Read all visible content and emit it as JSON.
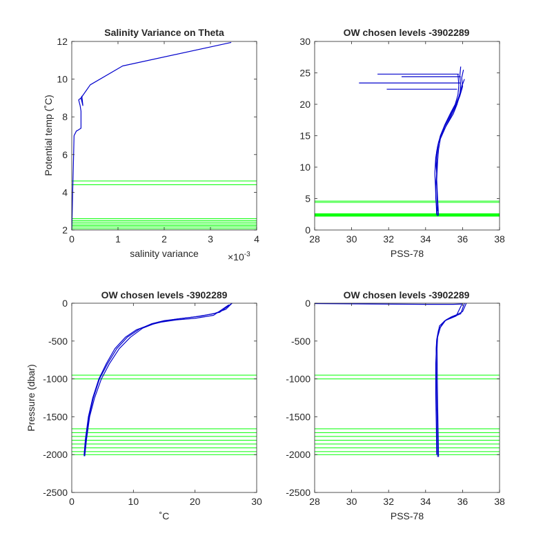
{
  "chart_data": [
    {
      "id": "p1",
      "type": "line",
      "title": "Salinity Variance on Theta",
      "xlabel": "salinity variance",
      "ylabel": "Potential temp (˚C)",
      "x_exponent_label": "×10",
      "x_exponent_power": "-3",
      "xlim": [
        0,
        0.004
      ],
      "ylim": [
        2,
        12
      ],
      "xticks": [
        0,
        0.001,
        0.002,
        0.003,
        0.004
      ],
      "xticklabels": [
        "0",
        "1",
        "2",
        "3",
        "4"
      ],
      "yticks": [
        2,
        4,
        6,
        8,
        10,
        12
      ],
      "yticklabels": [
        "2",
        "4",
        "6",
        "8",
        "10",
        "12"
      ],
      "hlines": [
        2.07,
        2.16,
        2.24,
        2.32,
        2.41,
        2.5,
        2.6,
        4.4,
        4.6
      ],
      "hline_color": "#00ff00",
      "series": [
        {
          "color": "#0000cc",
          "x": [
            0,
            1e-05,
            2e-05,
            3e-05,
            4e-05,
            5e-05,
            0.0001,
            0.00014,
            0.0002,
            0.0002,
            0.00018,
            0.00015,
            0.0002,
            0.00022,
            0.00024,
            0.0002,
            0.0004,
            0.0011,
            0.00345
          ],
          "y": [
            2.0,
            3.0,
            4.0,
            5.0,
            6.0,
            7.0,
            7.25,
            7.3,
            7.4,
            8.3,
            8.6,
            8.9,
            9.0,
            9.1,
            8.6,
            9.0,
            9.7,
            10.7,
            11.95
          ]
        }
      ]
    },
    {
      "id": "p2",
      "type": "line",
      "title": "OW chosen levels -3902289",
      "xlabel": "PSS-78",
      "ylabel": "",
      "xlim": [
        28,
        38
      ],
      "ylim": [
        0,
        30
      ],
      "xticks": [
        28,
        30,
        32,
        34,
        36,
        38
      ],
      "xticklabels": [
        "28",
        "30",
        "32",
        "34",
        "36",
        "38"
      ],
      "yticks": [
        0,
        5,
        10,
        15,
        20,
        25,
        30
      ],
      "yticklabels": [
        "0",
        "5",
        "10",
        "15",
        "20",
        "25",
        "30"
      ],
      "hlines": [
        2.2,
        2.3,
        2.4,
        2.5,
        2.6,
        4.4,
        4.6
      ],
      "hline_color": "#00ff00",
      "series": [
        {
          "color": "#0000cc",
          "x": [
            34.65,
            34.6,
            34.55,
            34.55,
            34.6,
            34.55,
            34.6,
            34.7,
            34.9,
            35.2,
            35.5,
            35.7,
            35.85,
            35.9,
            35.85,
            35.9
          ],
          "y": [
            2.2,
            3.5,
            5.0,
            7.0,
            9.0,
            11.0,
            12.5,
            14.0,
            15.5,
            17.0,
            18.5,
            20.0,
            21.5,
            23.0,
            24.5,
            26.0
          ]
        },
        {
          "color": "#0000cc",
          "x": [
            34.7,
            34.65,
            34.6,
            34.65,
            34.7,
            34.8,
            35.1,
            35.4,
            35.65,
            35.85,
            36.0,
            35.95,
            36.05
          ],
          "y": [
            2.3,
            5.0,
            8.0,
            11.0,
            12.8,
            14.5,
            16.5,
            18.3,
            19.8,
            21.3,
            22.8,
            24.2,
            25.5
          ]
        },
        {
          "color": "#0000cc",
          "x": [
            34.6,
            34.55,
            34.5,
            34.55,
            34.65,
            34.8,
            35.05,
            35.35,
            35.6,
            35.75,
            35.8,
            35.75
          ],
          "y": [
            2.4,
            6.0,
            9.0,
            11.5,
            13.3,
            15.0,
            16.8,
            18.6,
            20.0,
            21.5,
            23.0,
            24.8
          ]
        },
        {
          "color": "#0000cc",
          "x": [
            34.65,
            34.6,
            34.6,
            34.7,
            34.95,
            35.3,
            35.6,
            35.8,
            35.95,
            36.1
          ],
          "y": [
            3.0,
            7.5,
            11.5,
            13.8,
            16.0,
            18.0,
            19.8,
            21.2,
            22.8,
            24.0
          ]
        },
        {
          "color": "#0000cc",
          "x": [
            31.4,
            35.8
          ],
          "y": [
            24.8,
            24.8
          ]
        },
        {
          "color": "#0000cc",
          "x": [
            32.7,
            35.9
          ],
          "y": [
            24.4,
            24.4
          ]
        },
        {
          "color": "#0000cc",
          "x": [
            30.4,
            35.9
          ],
          "y": [
            23.4,
            23.4
          ]
        },
        {
          "color": "#0000cc",
          "x": [
            31.9,
            35.7
          ],
          "y": [
            22.4,
            22.4
          ]
        }
      ]
    },
    {
      "id": "p3",
      "type": "line",
      "title": "OW chosen levels -3902289",
      "xlabel": "˚C",
      "ylabel": "Pressure (dbar)",
      "xlim": [
        0,
        30
      ],
      "ylim": [
        -2500,
        0
      ],
      "xticks": [
        0,
        10,
        20,
        30
      ],
      "xticklabels": [
        "0",
        "10",
        "20",
        "30"
      ],
      "yticks": [
        -2500,
        -2000,
        -1500,
        -1000,
        -500,
        0
      ],
      "yticklabels": [
        "-2500",
        "-2000",
        "-1500",
        "-1000",
        "-500",
        "0"
      ],
      "hlines": [
        -950,
        -1000,
        -1660,
        -1710,
        -1760,
        -1810,
        -1860,
        -1910,
        -1960,
        -2000
      ],
      "hline_color": "#00ff00",
      "series": [
        {
          "color": "#0000cc",
          "x": [
            2.0,
            2.3,
            2.8,
            3.5,
            4.5,
            5.8,
            7.3,
            9.0,
            11.0,
            13.0,
            15.0,
            18.0,
            21.0,
            24.0,
            26.0
          ],
          "y": [
            -2020,
            -1800,
            -1500,
            -1250,
            -1000,
            -800,
            -600,
            -450,
            -340,
            -270,
            -230,
            -200,
            -170,
            -120,
            0
          ]
        },
        {
          "color": "#0000cc",
          "x": [
            2.1,
            2.4,
            2.9,
            3.7,
            4.8,
            6.1,
            7.7,
            9.5,
            11.5,
            14.0,
            17.0,
            20.0,
            23.0,
            25.0,
            26.0
          ],
          "y": [
            -2020,
            -1800,
            -1500,
            -1250,
            -1000,
            -800,
            -600,
            -450,
            -330,
            -250,
            -210,
            -180,
            -140,
            -80,
            0
          ]
        },
        {
          "color": "#0000cc",
          "x": [
            2.0,
            2.2,
            2.7,
            3.4,
            4.4,
            5.6,
            7.0,
            8.7,
            10.5,
            12.5,
            14.5,
            17.0,
            20.0,
            23.0,
            25.5
          ],
          "y": [
            -2000,
            -1800,
            -1500,
            -1250,
            -1000,
            -800,
            -600,
            -450,
            -350,
            -290,
            -250,
            -220,
            -200,
            -160,
            -20
          ]
        }
      ]
    },
    {
      "id": "p4",
      "type": "line",
      "title": "OW chosen levels -3902289",
      "xlabel": "PSS-78",
      "ylabel": "",
      "xlim": [
        28,
        38
      ],
      "ylim": [
        -2500,
        0
      ],
      "xticks": [
        28,
        30,
        32,
        34,
        36,
        38
      ],
      "xticklabels": [
        "28",
        "30",
        "32",
        "34",
        "36",
        "38"
      ],
      "yticks": [
        -2500,
        -2000,
        -1500,
        -1000,
        -500,
        0
      ],
      "yticklabels": [
        "-2500",
        "-2000",
        "-1500",
        "-1000",
        "-500",
        "0"
      ],
      "hlines": [
        -950,
        -1000,
        -1660,
        -1710,
        -1760,
        -1810,
        -1860,
        -1910,
        -1960,
        -2000
      ],
      "hline_color": "#00ff00",
      "series": [
        {
          "color": "#0000cc",
          "x": [
            34.65,
            34.63,
            34.6,
            34.58,
            34.57,
            34.6,
            34.7,
            35.0,
            35.3,
            35.6,
            35.9,
            36.1
          ],
          "y": [
            -2030,
            -1700,
            -1300,
            -900,
            -600,
            -480,
            -350,
            -240,
            -200,
            -170,
            -140,
            0
          ]
        },
        {
          "color": "#0000cc",
          "x": [
            34.7,
            34.68,
            34.65,
            34.63,
            34.62,
            34.65,
            34.8,
            35.1,
            35.4,
            35.7,
            36.0,
            36.2
          ],
          "y": [
            -2030,
            -1700,
            -1300,
            -900,
            -600,
            -450,
            -320,
            -220,
            -180,
            -150,
            -110,
            0
          ]
        },
        {
          "color": "#0000cc",
          "x": [
            34.6,
            34.58,
            34.55,
            34.55,
            34.6,
            34.75,
            35.05,
            35.35,
            35.65,
            35.95
          ],
          "y": [
            -2000,
            -1600,
            -1200,
            -800,
            -500,
            -300,
            -230,
            -200,
            -170,
            -20
          ]
        },
        {
          "color": "#0000cc",
          "x": [
            28.0,
            31.0,
            34.0,
            35.5,
            36.0
          ],
          "y": [
            -5,
            -10,
            -15,
            -15,
            -10
          ]
        }
      ]
    }
  ]
}
